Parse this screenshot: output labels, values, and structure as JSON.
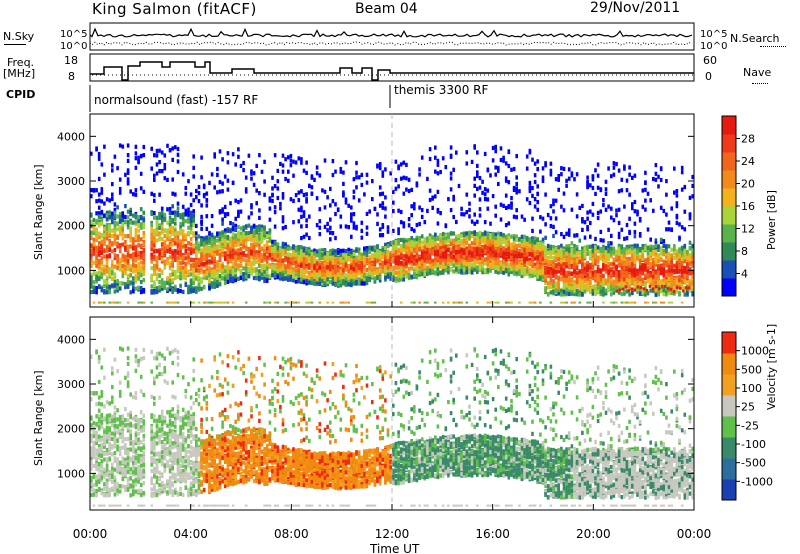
{
  "header": {
    "site": "King Salmon (fitACF)",
    "beam": "Beam 04",
    "date": "29/Nov/2011"
  },
  "noise_panel": {
    "left_label": "N.Sky",
    "right_label": "N.Search",
    "left_ticks": [
      "10^5",
      "10^0"
    ],
    "right_ticks": [
      "10^5",
      "10^0"
    ]
  },
  "freq_panel": {
    "left_label_1": "Freq.",
    "left_label_2": "[MHz]",
    "right_label": "Nave",
    "left_ticks": [
      "18",
      "8"
    ],
    "right_ticks": [
      "60",
      "0"
    ]
  },
  "cpid_panel": {
    "label": "CPID",
    "segments": [
      "normalsound (fast) -157 RF",
      "themis 3300 RF"
    ]
  },
  "chart_data": [
    {
      "type": "heatmap",
      "name": "power",
      "ylabel": "Slant Range [km]",
      "xlabel": "Time UT",
      "xlim": [
        "00:00",
        "00:00"
      ],
      "ylim": [
        180,
        4500
      ],
      "yticks": [
        1000,
        2000,
        3000,
        4000
      ],
      "colorbar_label": "Power [dB]",
      "colorbar_ticks": [
        "28",
        "24",
        "20",
        "16",
        "12",
        "8",
        "4"
      ],
      "colors": [
        "#0000ff",
        "#1a4fb5",
        "#2e8b57",
        "#59b34a",
        "#a8d43a",
        "#f2b21c",
        "#f28a1c",
        "#f2651c",
        "#ef3a18",
        "#e61a10"
      ]
    },
    {
      "type": "heatmap",
      "name": "velocity",
      "ylabel": "Slant Range [km]",
      "xlabel": "Time UT",
      "xlim": [
        "00:00",
        "00:00"
      ],
      "ylim": [
        180,
        4500
      ],
      "yticks": [
        1000,
        2000,
        3000,
        4000
      ],
      "colorbar_label": "Velocity [m s-1]",
      "colorbar_ticks": [
        "1000",
        "500",
        "100",
        "25",
        "-25",
        "-100",
        "-500",
        "-1000"
      ],
      "colors": [
        "#1a3fb0",
        "#2e6e9e",
        "#3a8a6a",
        "#5fc04a",
        "#c8c8c0",
        "#f2a020",
        "#f08a10",
        "#ef2a10"
      ]
    }
  ],
  "xaxis": {
    "label": "Time UT",
    "ticks": [
      "00:00",
      "04:00",
      "08:00",
      "12:00",
      "16:00",
      "20:00",
      "00:00"
    ]
  }
}
